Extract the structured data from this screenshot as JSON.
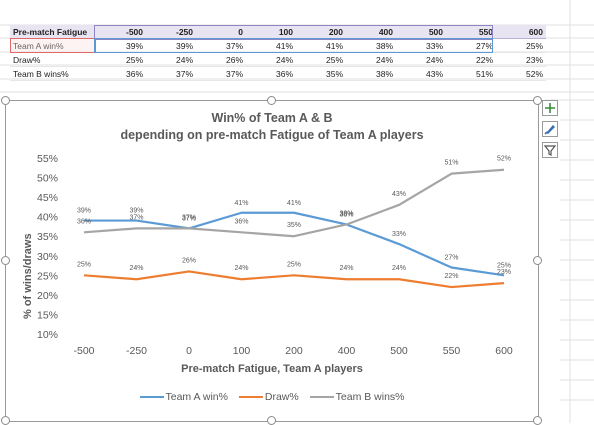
{
  "table": {
    "header": {
      "label": "Pre-match Fatigue",
      "values": [
        "-500",
        "-250",
        "0",
        "100",
        "200",
        "400",
        "500",
        "550",
        "600"
      ]
    },
    "rows": [
      {
        "label": "Team A win%",
        "values": [
          "39%",
          "39%",
          "37%",
          "41%",
          "41%",
          "38%",
          "33%",
          "27%",
          "25%"
        ]
      },
      {
        "label": "Draw%",
        "values": [
          "25%",
          "24%",
          "26%",
          "24%",
          "25%",
          "24%",
          "24%",
          "22%",
          "23%"
        ]
      },
      {
        "label": "Team B wins%",
        "values": [
          "36%",
          "37%",
          "37%",
          "36%",
          "35%",
          "38%",
          "43%",
          "51%",
          "52%"
        ]
      }
    ]
  },
  "chart_data": {
    "type": "line",
    "title": "Win% of Team A & B",
    "subtitle": "depending on pre-match Fatigue of Team A players",
    "xlabel": "Pre-match Fatigue, Team A players",
    "ylabel": "% of wins/draws",
    "categories": [
      "-500",
      "-250",
      "0",
      "100",
      "200",
      "400",
      "500",
      "550",
      "600"
    ],
    "y_ticks": [
      "10%",
      "15%",
      "20%",
      "25%",
      "30%",
      "35%",
      "40%",
      "45%",
      "50%",
      "55%"
    ],
    "ylim": [
      10,
      55
    ],
    "grid": false,
    "legend": "bottom",
    "series": [
      {
        "name": "Team A win%",
        "color": "#5b9bd5",
        "values": [
          39,
          39,
          37,
          41,
          41,
          38,
          33,
          27,
          25
        ],
        "labels": [
          "39%",
          "39%",
          "37%",
          "41%",
          "41%",
          "38%",
          "33%",
          "27%",
          "25%"
        ]
      },
      {
        "name": "Draw%",
        "color": "#ed7d31",
        "values": [
          25,
          24,
          26,
          24,
          25,
          24,
          24,
          22,
          23
        ],
        "labels": [
          "25%",
          "24%",
          "26%",
          "24%",
          "25%",
          "24%",
          "24%",
          "22%",
          "23%"
        ]
      },
      {
        "name": "Team B wins%",
        "color": "#a5a5a5",
        "values": [
          36,
          37,
          37,
          36,
          35,
          38,
          43,
          51,
          52
        ],
        "labels": [
          "36%",
          "37%",
          "37%",
          "36%",
          "35%",
          "38%",
          "43%",
          "51%",
          "52%"
        ]
      }
    ]
  },
  "side_buttons": {
    "colors": {
      "plus": "#3a8c3a",
      "brush": "#3a6fb0",
      "filter": "#555555"
    }
  }
}
